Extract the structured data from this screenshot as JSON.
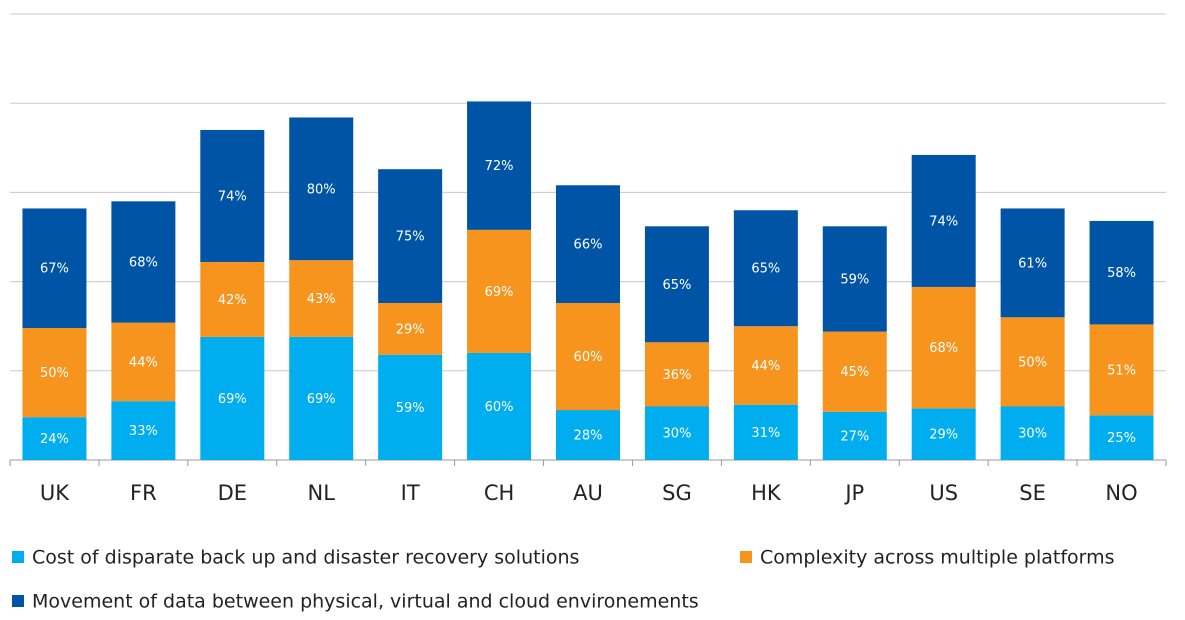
{
  "chart_data": {
    "type": "stacked_bar",
    "categories": [
      "UK",
      "FR",
      "DE",
      "NL",
      "IT",
      "CH",
      "AU",
      "SG",
      "HK",
      "JP",
      "US",
      "SE",
      "NO"
    ],
    "series": [
      {
        "name": "Cost of disparate back up and disaster recovery solutions",
        "color": "#00aeef",
        "values": [
          24,
          33,
          69,
          69,
          59,
          60,
          28,
          30,
          31,
          27,
          29,
          30,
          25
        ],
        "value_labels": [
          "24%",
          "33%",
          "69%",
          "69%",
          "59%",
          "60%",
          "28%",
          "30%",
          "31%",
          "27%",
          "29%",
          "30%",
          "25%"
        ]
      },
      {
        "name": "Complexity across multiple platforms",
        "color": "#f7941d",
        "values": [
          50,
          44,
          42,
          43,
          29,
          69,
          60,
          36,
          44,
          45,
          68,
          50,
          51
        ],
        "value_labels": [
          "50%",
          "44%",
          "42%",
          "43%",
          "29%",
          "69%",
          "60%",
          "36%",
          "44%",
          "45%",
          "68%",
          "50%",
          "51%"
        ]
      },
      {
        "name": "Movement of data between physical, virtual and cloud environements",
        "color": "#0054a6",
        "values": [
          67,
          68,
          74,
          80,
          75,
          72,
          66,
          65,
          65,
          59,
          74,
          61,
          58
        ],
        "value_labels": [
          "67%",
          "68%",
          "74%",
          "80%",
          "75%",
          "72%",
          "66%",
          "65%",
          "65%",
          "59%",
          "74%",
          "61%",
          "58%"
        ]
      }
    ],
    "ylim": [
      0,
      250
    ],
    "yticks": [
      0,
      50,
      100,
      150,
      200,
      250
    ],
    "grid": true
  }
}
